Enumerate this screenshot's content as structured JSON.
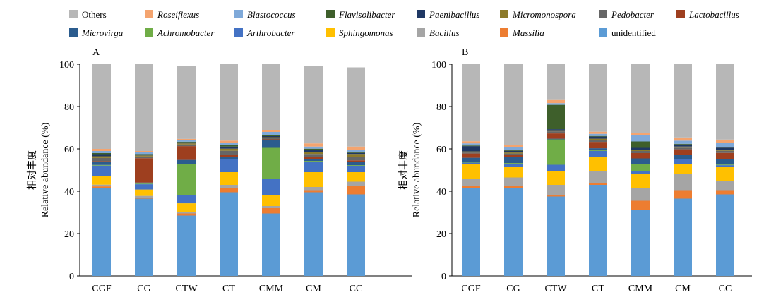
{
  "legend": [
    {
      "name": "Others",
      "color": "#b7b7b7",
      "italic": false
    },
    {
      "name": "Roseiflexus",
      "color": "#f4a46f",
      "italic": true
    },
    {
      "name": "Blastococcus",
      "color": "#7fa9d9",
      "italic": true
    },
    {
      "name": "Flavisolibacter",
      "color": "#3e5f2b",
      "italic": true
    },
    {
      "name": "Paenibacillus",
      "color": "#1f3864",
      "italic": true
    },
    {
      "name": "Micromonospora",
      "color": "#8c7a2a",
      "italic": true
    },
    {
      "name": "Pedobacter",
      "color": "#666666",
      "italic": true
    },
    {
      "name": "Lactobacillus",
      "color": "#9e3f1f",
      "italic": true
    },
    {
      "name": "Microvirga",
      "color": "#2b5c8e",
      "italic": true
    },
    {
      "name": "Achromobacter",
      "color": "#70ad47",
      "italic": true
    },
    {
      "name": "Arthrobacter",
      "color": "#4472c4",
      "italic": true
    },
    {
      "name": "Sphingomonas",
      "color": "#ffc000",
      "italic": true
    },
    {
      "name": "Bacillus",
      "color": "#a5a5a5",
      "italic": true
    },
    {
      "name": "Massilia",
      "color": "#ed7d31",
      "italic": true
    },
    {
      "name": "unidentified",
      "color": "#5b9bd5",
      "italic": false
    }
  ],
  "chart_data": [
    {
      "type": "bar",
      "stacked": true,
      "panel_label": "A",
      "ylabel_cn": "相对丰度",
      "ylabel": "Relative abundance (%)",
      "ylim": [
        0,
        100
      ],
      "yticks": [
        0,
        20,
        40,
        60,
        80,
        100
      ],
      "categories": [
        "CGF",
        "CG",
        "CTW",
        "CT",
        "CMM",
        "CM",
        "CC"
      ],
      "series": [
        {
          "name": "unidentified",
          "values": [
            41.5,
            36.5,
            28.5,
            39.5,
            29.5,
            39.5,
            38.5
          ]
        },
        {
          "name": "Massilia",
          "values": [
            0.8,
            0.5,
            1.0,
            2.0,
            2.5,
            1.0,
            4.0
          ]
        },
        {
          "name": "Bacillus",
          "values": [
            0.8,
            0.8,
            0.8,
            1.5,
            1.0,
            1.5,
            2.0
          ]
        },
        {
          "name": "Sphingomonas",
          "values": [
            4.0,
            3.0,
            4.0,
            6.0,
            5.0,
            7.0,
            4.5
          ]
        },
        {
          "name": "Arthrobacter",
          "values": [
            5.0,
            2.5,
            4.0,
            6.0,
            8.0,
            5.0,
            3.0
          ]
        },
        {
          "name": "Achromobacter",
          "values": [
            0.3,
            0.3,
            14.5,
            0.3,
            14.5,
            0.3,
            0.3
          ]
        },
        {
          "name": "Microvirga",
          "values": [
            1.5,
            0.5,
            2.0,
            1.0,
            3.5,
            1.0,
            1.5
          ]
        },
        {
          "name": "Lactobacillus",
          "values": [
            0.3,
            11.5,
            6.5,
            0.8,
            0.5,
            0.8,
            0.8
          ]
        },
        {
          "name": "Pedobacter",
          "values": [
            1.5,
            0.8,
            0.8,
            2.0,
            0.5,
            1.5,
            1.5
          ]
        },
        {
          "name": "Micromonospora",
          "values": [
            0.8,
            0.5,
            0.5,
            1.0,
            0.5,
            1.0,
            1.5
          ]
        },
        {
          "name": "Paenibacillus",
          "values": [
            1.0,
            0.3,
            0.5,
            1.0,
            0.5,
            1.0,
            0.5
          ]
        },
        {
          "name": "Flavisolibacter",
          "values": [
            0.5,
            0.3,
            0.3,
            0.8,
            0.5,
            0.5,
            0.5
          ]
        },
        {
          "name": "Blastococcus",
          "values": [
            1.0,
            1.0,
            0.8,
            1.0,
            1.5,
            1.0,
            1.0
          ]
        },
        {
          "name": "Roseiflexus",
          "values": [
            1.0,
            0.5,
            0.5,
            1.0,
            1.0,
            1.5,
            1.5
          ]
        },
        {
          "name": "Others",
          "values": [
            40.0,
            41.0,
            34.5,
            36.1,
            31.0,
            36.4,
            37.4
          ]
        }
      ]
    },
    {
      "type": "bar",
      "stacked": true,
      "panel_label": "B",
      "ylabel_cn": "相对丰度",
      "ylabel": "Relative abundance (%)",
      "ylim": [
        0,
        100
      ],
      "yticks": [
        0,
        20,
        40,
        60,
        80,
        100
      ],
      "categories": [
        "CGF",
        "CG",
        "CTW",
        "CT",
        "CMM",
        "CM",
        "CC"
      ],
      "series": [
        {
          "name": "unidentified",
          "values": [
            41.5,
            41.5,
            37.5,
            43.0,
            31.0,
            36.5,
            38.5
          ]
        },
        {
          "name": "Massilia",
          "values": [
            1.0,
            1.0,
            0.5,
            1.0,
            4.5,
            4.0,
            2.0
          ]
        },
        {
          "name": "Bacillus",
          "values": [
            3.5,
            4.0,
            5.0,
            5.5,
            6.0,
            7.5,
            4.5
          ]
        },
        {
          "name": "Sphingomonas",
          "values": [
            7.0,
            5.0,
            6.5,
            6.5,
            6.5,
            5.0,
            6.5
          ]
        },
        {
          "name": "Arthrobacter",
          "values": [
            0.5,
            1.5,
            3.0,
            3.0,
            1.5,
            2.0,
            0.8
          ]
        },
        {
          "name": "Achromobacter",
          "values": [
            0.3,
            0.3,
            12.0,
            0.3,
            3.5,
            0.3,
            0.3
          ]
        },
        {
          "name": "Microvirga",
          "values": [
            2.0,
            3.0,
            0.3,
            1.0,
            2.5,
            2.0,
            2.5
          ]
        },
        {
          "name": "Lactobacillus",
          "values": [
            2.0,
            1.0,
            2.5,
            3.0,
            2.5,
            2.5,
            3.0
          ]
        },
        {
          "name": "Pedobacter",
          "values": [
            0.5,
            0.5,
            1.0,
            1.0,
            1.0,
            0.8,
            1.0
          ]
        },
        {
          "name": "Micromonospora",
          "values": [
            0.5,
            0.5,
            0.5,
            0.5,
            0.5,
            0.5,
            0.5
          ]
        },
        {
          "name": "Paenibacillus",
          "values": [
            2.5,
            0.8,
            0.5,
            1.0,
            1.0,
            1.0,
            1.0
          ]
        },
        {
          "name": "Flavisolibacter",
          "values": [
            0.3,
            0.3,
            11.5,
            0.3,
            3.0,
            0.3,
            0.3
          ]
        },
        {
          "name": "Blastococcus",
          "values": [
            1.0,
            1.5,
            0.8,
            1.0,
            3.0,
            1.5,
            2.0
          ]
        },
        {
          "name": "Roseiflexus",
          "values": [
            1.0,
            1.0,
            1.5,
            1.0,
            1.0,
            1.5,
            1.5
          ]
        },
        {
          "name": "Others",
          "values": [
            36.4,
            38.1,
            16.9,
            32.9,
            32.5,
            34.6,
            35.6
          ]
        }
      ]
    }
  ]
}
